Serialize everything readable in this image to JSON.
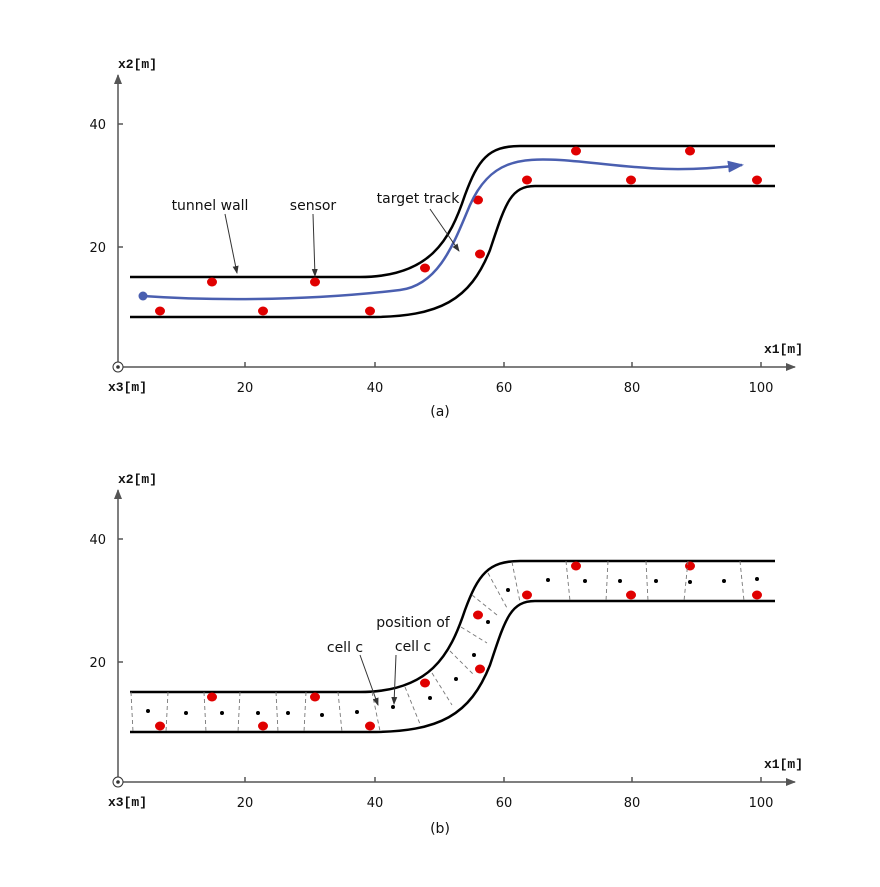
{
  "panels": [
    {
      "axes": {
        "y_label": "x2[m]",
        "x_label": "x1[m]",
        "z_label": "x3[m]",
        "x_ticks": [
          "20",
          "40",
          "60",
          "80",
          "100"
        ],
        "y_ticks": [
          "20",
          "40"
        ]
      },
      "annotations": [
        "tunnel wall",
        "sensor",
        "target track"
      ],
      "caption": "(a)"
    },
    {
      "axes": {
        "y_label": "x2[m]",
        "x_label": "x1[m]",
        "z_label": "x3[m]",
        "x_ticks": [
          "20",
          "40",
          "60",
          "80",
          "100"
        ],
        "y_ticks": [
          "20",
          "40"
        ]
      },
      "annotations": [
        "cell c",
        "position of",
        "cell c"
      ],
      "caption": "(b)"
    }
  ]
}
